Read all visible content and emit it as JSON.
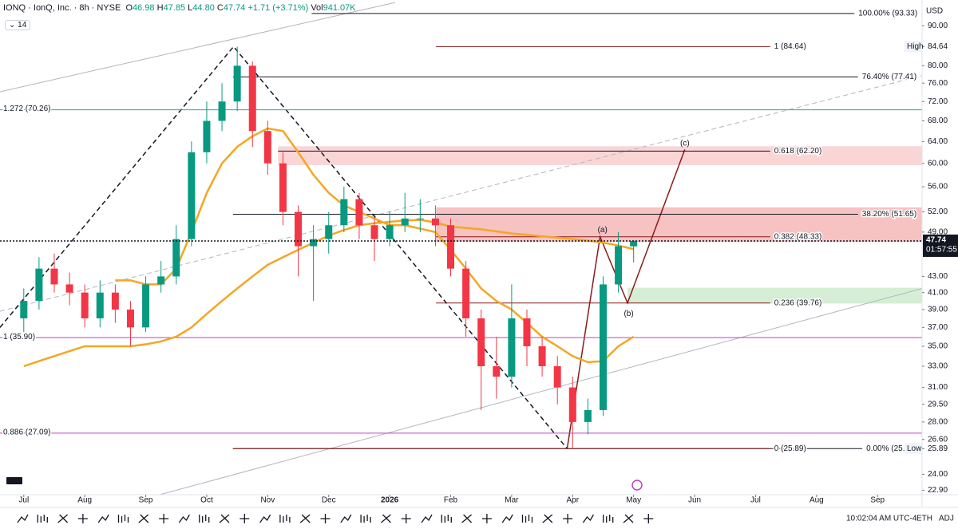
{
  "header": {
    "title": "IONQ · IonQ, Inc. · 8h · NYSE",
    "ohlc": [
      {
        "key": "O",
        "value": "46.98"
      },
      {
        "key": "H",
        "value": "47.85"
      },
      {
        "key": "L",
        "value": "44.80"
      },
      {
        "key": "C",
        "value": "47.74"
      }
    ],
    "change": "+1.71 (+3.71%)",
    "volume": {
      "key": "Vol",
      "value": "941.07K"
    },
    "indicator_badge": "14"
  },
  "chart_data": {
    "type": "candlestick",
    "currency": "USD",
    "log_scale": true,
    "xlim": [
      -0.39,
      14.73
    ],
    "ylim": [
      22.6,
      97.1
    ],
    "xticks": [
      {
        "value": 0,
        "label": "Jul"
      },
      {
        "value": 1,
        "label": "Aug"
      },
      {
        "value": 2,
        "label": "Sep"
      },
      {
        "value": 3,
        "label": "Oct"
      },
      {
        "value": 4,
        "label": "Nov"
      },
      {
        "value": 5,
        "label": "Dec"
      },
      {
        "value": 6,
        "label": "2026"
      },
      {
        "value": 7,
        "label": "Feb"
      },
      {
        "value": 8,
        "label": "Mar"
      },
      {
        "value": 9,
        "label": "Apr"
      },
      {
        "value": 10,
        "label": "May"
      },
      {
        "value": 11,
        "label": "Jun"
      },
      {
        "value": 12,
        "label": "Jul"
      },
      {
        "value": 13,
        "label": "Aug"
      },
      {
        "value": 14,
        "label": "Sep"
      }
    ],
    "yticks": [
      {
        "value": 90,
        "label": "90.00"
      },
      84.64,
      {
        "value": 80,
        "label": "80.00"
      },
      {
        "value": 76,
        "label": "76.00"
      },
      {
        "value": 72,
        "label": "72.00"
      },
      {
        "value": 68,
        "label": "68.00"
      },
      {
        "value": 64,
        "label": "64.00"
      },
      {
        "value": 60,
        "label": "60.00"
      },
      {
        "value": 56,
        "label": "56.00"
      },
      {
        "value": 52,
        "label": "52.00"
      },
      {
        "value": 49,
        "label": "49.00"
      },
      {
        "value": 43,
        "label": "43.00"
      },
      {
        "value": 41,
        "label": "41.00"
      },
      {
        "value": 39,
        "label": "39.00"
      },
      {
        "value": 37,
        "label": "37.00"
      },
      {
        "value": 35,
        "label": "35.00"
      },
      {
        "value": 33,
        "label": "33.00"
      },
      {
        "value": 31,
        "label": "31.00"
      },
      {
        "value": 29.5,
        "label": "29.50"
      },
      {
        "value": 28,
        "label": "28.00"
      },
      {
        "value": 26.6,
        "label": "26.60"
      },
      25.89,
      {
        "value": 24,
        "label": "24.00"
      },
      {
        "value": 22.9,
        "label": "22.90"
      }
    ],
    "x": [
      0,
      0.25,
      0.5,
      0.75,
      1,
      1.25,
      1.5,
      1.75,
      2,
      2.25,
      2.5,
      2.75,
      3,
      3.25,
      3.5,
      3.75,
      4,
      4.25,
      4.5,
      4.75,
      5,
      5.25,
      5.5,
      5.75,
      6,
      6.25,
      6.5,
      6.75,
      7,
      7.25,
      7.5,
      7.75,
      8,
      8.25,
      8.5,
      8.75,
      9,
      9.25,
      9.5,
      9.75,
      10
    ],
    "open": [
      38,
      40,
      44,
      42,
      41,
      38,
      41,
      39,
      37,
      42,
      43,
      48,
      62,
      68,
      72,
      80,
      66,
      60,
      52,
      47,
      48,
      50,
      54,
      50,
      48,
      50,
      51,
      51,
      50,
      44,
      38,
      33,
      32,
      38,
      35,
      33,
      31,
      28,
      29,
      42,
      46.98
    ],
    "high": [
      41.5,
      45.5,
      46,
      43.5,
      42,
      42.5,
      42,
      40,
      43,
      45,
      50,
      64,
      72,
      76,
      84.64,
      81,
      68,
      62,
      53,
      50,
      52,
      56,
      55,
      51,
      52,
      55,
      54,
      53,
      51,
      45,
      39,
      36,
      42,
      39,
      36,
      34,
      32,
      30,
      43,
      49,
      47.85
    ],
    "low": [
      36.5,
      39,
      41,
      39.5,
      37,
      37,
      37.5,
      35,
      36.5,
      41,
      42,
      47,
      60,
      66,
      70,
      63,
      58,
      50,
      43,
      40,
      46,
      49,
      48,
      45,
      47,
      49,
      49,
      47,
      43,
      36,
      29,
      30,
      31,
      33,
      32,
      29.5,
      25.89,
      27,
      28.5,
      41,
      44.8
    ],
    "close": [
      40,
      44,
      42,
      41,
      38,
      41,
      39,
      37,
      42,
      43,
      48,
      62,
      68,
      72,
      80,
      66,
      60,
      52,
      47,
      48,
      50,
      54,
      50,
      48,
      50,
      51,
      51,
      50,
      44,
      38,
      33,
      32,
      38,
      35,
      33,
      31,
      28,
      29,
      42,
      47,
      47.74
    ],
    "up_color": "#089981",
    "down_color": "#f23645",
    "moving_averages": [
      {
        "color": "#f5a623",
        "values": [
          null,
          null,
          null,
          null,
          null,
          null,
          42.5,
          42.5,
          42,
          42,
          44,
          49,
          55,
          60,
          63,
          65,
          66.5,
          66,
          62,
          58,
          55,
          53,
          52,
          51,
          50,
          50,
          49.5,
          49,
          46.5,
          44,
          41.5,
          40,
          39,
          37.5,
          36,
          35,
          34,
          33.4,
          33.5,
          35,
          36
        ]
      },
      {
        "color": "#f5a623",
        "values": [
          33,
          33.5,
          34,
          34.5,
          35,
          35,
          35,
          35,
          35.2,
          35.5,
          36,
          37,
          38.5,
          40,
          41.5,
          43,
          44.5,
          45.5,
          46.5,
          47.5,
          48.5,
          49.3,
          50,
          50.3,
          50.5,
          50.7,
          50.8,
          50.4,
          49.8,
          49.6,
          49.4,
          49.1,
          48.8,
          48.6,
          48.4,
          48.2,
          48,
          47.8,
          47.5,
          47.1,
          46.6
        ]
      }
    ],
    "zones": [
      {
        "y": [
          59.7,
          63.1
        ],
        "x": [
          4.17,
          14.73
        ],
        "color": "#f7b9b9"
      },
      {
        "y": [
          47.6,
          52.7
        ],
        "x": [
          6.76,
          14.73
        ],
        "color": "#f29a9a"
      },
      {
        "y": [
          39.7,
          41.6
        ],
        "x": [
          9.9,
          14.73
        ],
        "color": "#b9e3b9"
      }
    ],
    "drawings": [
      {
        "color": "#b2b5be",
        "dash": "solid",
        "points": [
          [
            -0.39,
            74.1
          ],
          [
            6.09,
            96.4
          ]
        ]
      },
      {
        "color": "#b2b5be",
        "dash": "solid",
        "points": [
          [
            2.23,
            22.6
          ],
          [
            14.73,
            41.5
          ]
        ]
      },
      {
        "color": "#b2b5be",
        "dash": "dashed",
        "points": [
          [
            -0.39,
            38.8
          ],
          [
            14.73,
            77.7
          ]
        ]
      },
      {
        "color": "#131722",
        "dash": "dashed",
        "points": [
          [
            -0.39,
            37
          ],
          [
            3.44,
            84.64
          ],
          [
            8.91,
            25.89
          ]
        ]
      },
      {
        "color": "#8b1a1a",
        "dash": "solid",
        "points": [
          [
            8.91,
            25.89
          ],
          [
            9.45,
            48.33
          ],
          [
            9.9,
            39.76
          ],
          [
            10.84,
            62.5
          ]
        ]
      }
    ],
    "levels": [
      {
        "value": 93.33,
        "label": "100.00% (93.33)",
        "color": "#131722",
        "x": [
          4.72,
          13.62
        ]
      },
      {
        "value": 84.64,
        "label": "1 (84.64)",
        "color": "#8b1a1a",
        "x": [
          6.76,
          12.24
        ]
      },
      {
        "value": 77.41,
        "label": "76.40% (77.41)",
        "color": "#131722",
        "x": [
          3.43,
          13.68
        ]
      },
      {
        "value": 70.26,
        "label": "1.272 (70.26)",
        "color": "#26a69a",
        "x": [
          -0.39,
          14.73
        ]
      },
      {
        "value": 62.2,
        "label": "0.618 (62.20)",
        "color": "#131722",
        "x": [
          4.17,
          12.24
        ]
      },
      {
        "value": 51.65,
        "label": "38.20% (51.65)",
        "color": "#131722",
        "x": [
          3.43,
          13.68
        ]
      },
      {
        "value": 48.33,
        "label": "0.382 (48.33)",
        "color": "#8b1a1a",
        "x": [
          6.76,
          12.24
        ]
      },
      {
        "value": 39.76,
        "label": "0.236 (39.76)",
        "color": "#8b1a1a",
        "x": [
          6.76,
          12.24
        ]
      },
      {
        "value": 35.9,
        "label": "1 (35.90)",
        "color": "#c040c0",
        "x": [
          -0.39,
          14.73
        ]
      },
      {
        "value": 27.09,
        "label": "0.886 (27.09)",
        "color": "#c040c0",
        "x": [
          -0.39,
          14.73
        ]
      },
      {
        "value": 25.89,
        "label": "0.00% (25.",
        "color": "#131722",
        "x": [
          3.43,
          13.75
        ]
      },
      {
        "value": 25.89,
        "label": "0 (25.89)",
        "color": "#8b1a1a",
        "x": [
          3.43,
          12.24
        ]
      }
    ],
    "annotations": [
      {
        "text": "(a)",
        "x": 9.49,
        "price": 49.3
      },
      {
        "text": "(b)",
        "x": 9.92,
        "price": 38.5
      },
      {
        "text": "(c)",
        "x": 10.84,
        "price": 63.6
      }
    ],
    "annotation_color": "#8b1a1a",
    "high_tag": "High",
    "low_tag": "Low",
    "countdown": "01:57:55"
  },
  "status_bar": {
    "time": "10:02:04 AM UTC-4",
    "session": "ETH",
    "adjustment": "ADJ"
  }
}
